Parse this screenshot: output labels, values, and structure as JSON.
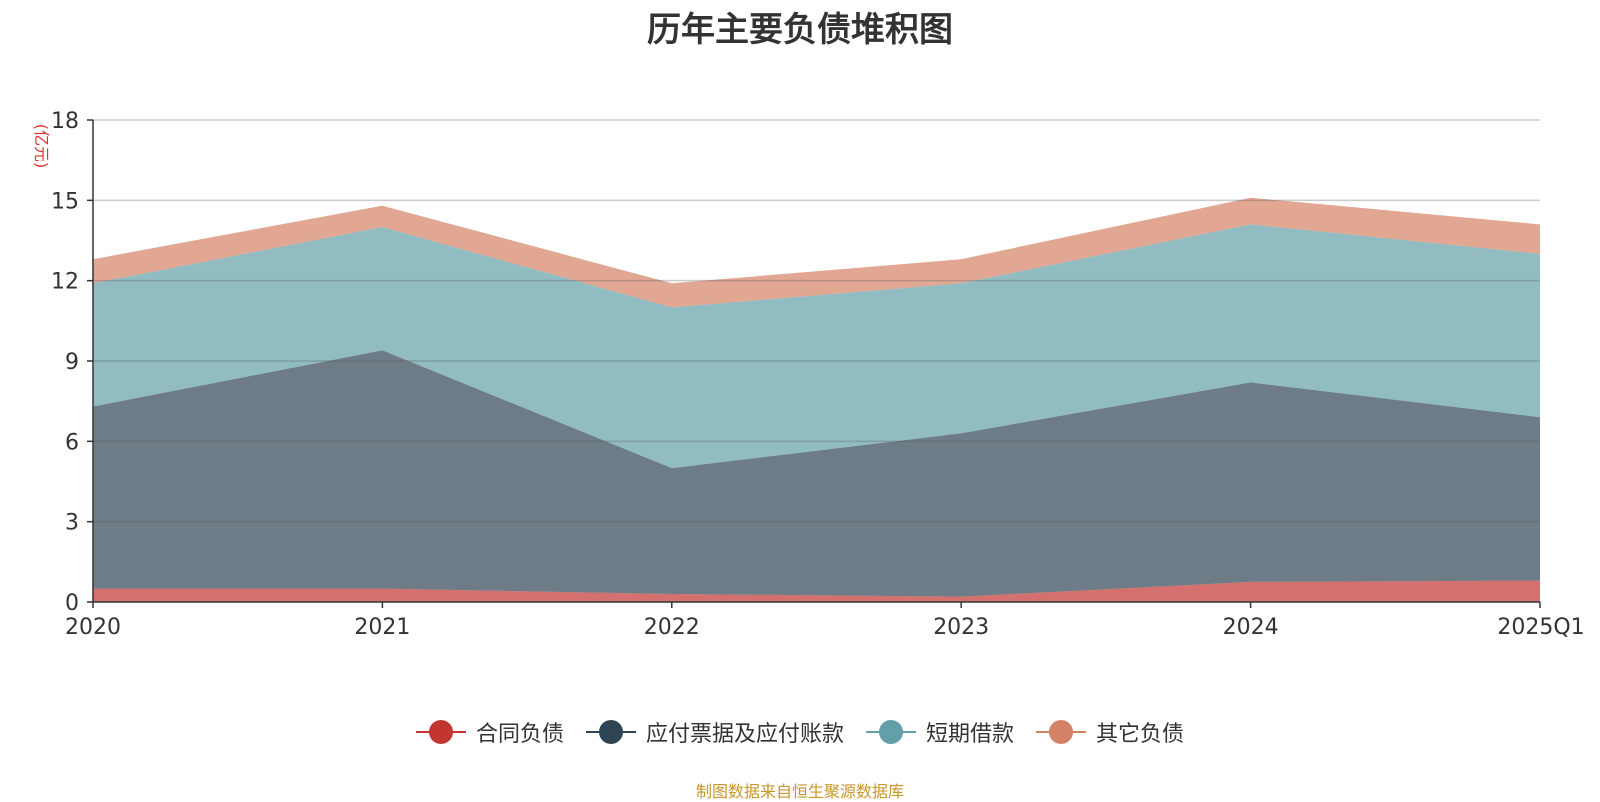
{
  "title": "历年主要负债堆积图",
  "source": "制图数据来自恒生聚源数据库",
  "colors": {
    "合同负债": "#c23531",
    "应付票据及应付账款": "#2f4554",
    "短期借款": "#61a0a8",
    "其它负债": "#d48265",
    "unit": "#e03030",
    "grid": "#cfcfcf",
    "axis": "#333333"
  },
  "chart_data": {
    "type": "area",
    "stacked": true,
    "title": "历年主要负债堆积图",
    "ylabel": "(亿元)",
    "ylim": [
      0,
      18
    ],
    "yticks": [
      0,
      3,
      6,
      9,
      12,
      15,
      18
    ],
    "categories": [
      "2020",
      "2021",
      "2022",
      "2023",
      "2024",
      "2025Q1"
    ],
    "legend_position": "bottom",
    "grid": true,
    "series": [
      {
        "name": "合同负债",
        "values": [
          0.5,
          0.5,
          0.3,
          0.2,
          0.75,
          0.8
        ]
      },
      {
        "name": "应付票据及应付账款",
        "values": [
          6.8,
          8.9,
          4.7,
          6.1,
          7.45,
          6.1
        ]
      },
      {
        "name": "短期借款",
        "values": [
          4.6,
          4.6,
          6.0,
          5.6,
          5.9,
          6.1
        ]
      },
      {
        "name": "其它负债",
        "values": [
          0.9,
          0.8,
          0.9,
          0.9,
          1.0,
          1.1
        ]
      }
    ]
  }
}
